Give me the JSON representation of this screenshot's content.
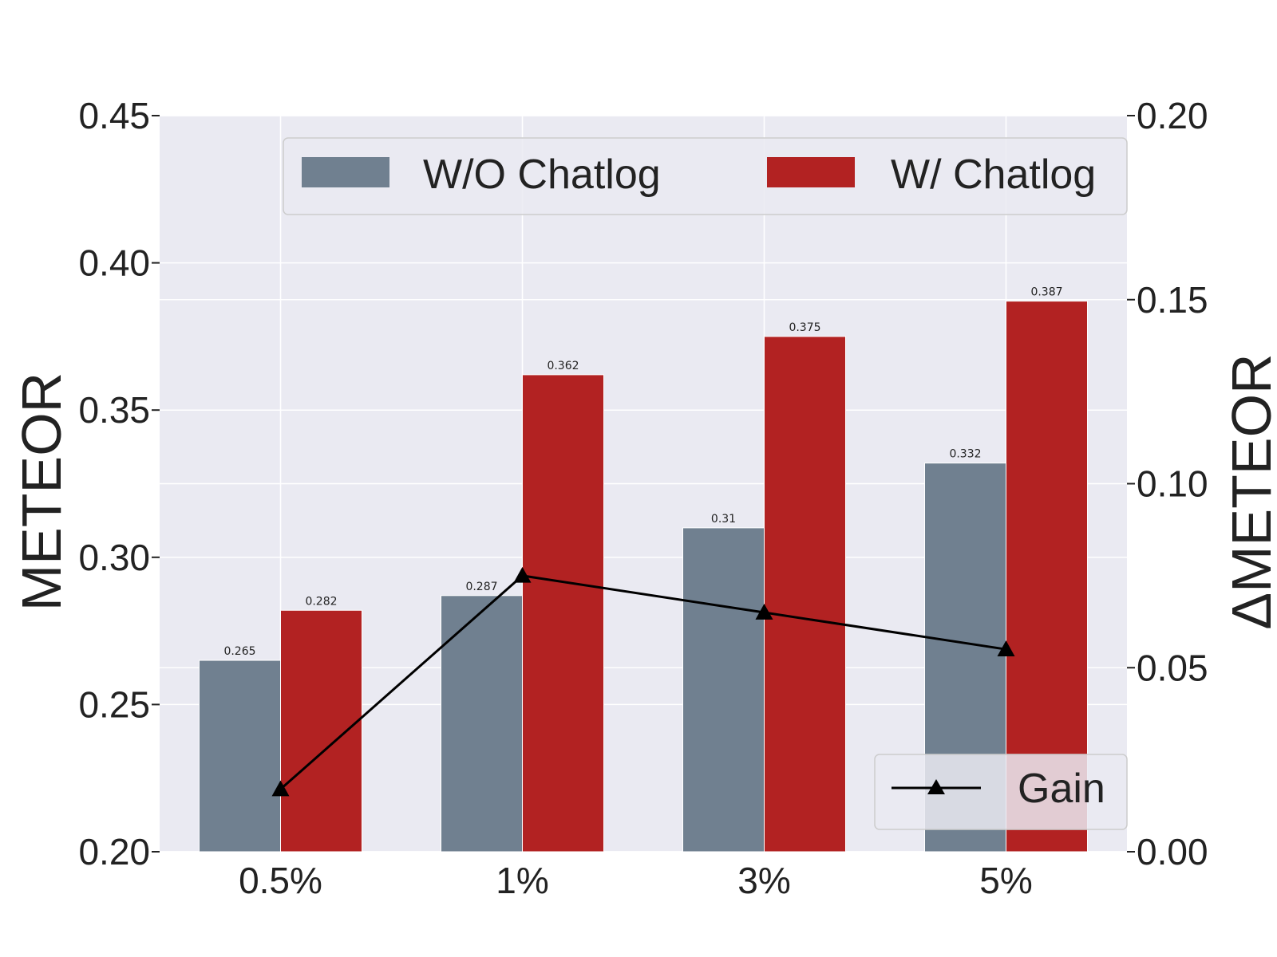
{
  "chart_data": {
    "type": "bar",
    "categories": [
      "0.5%",
      "1%",
      "3%",
      "5%"
    ],
    "series": [
      {
        "name": "W/O Chatlog",
        "values": [
          0.265,
          0.287,
          0.31,
          0.332
        ],
        "color": "#708090"
      },
      {
        "name": "W/ Chatlog",
        "values": [
          0.282,
          0.362,
          0.375,
          0.387
        ],
        "color": "#b22222"
      }
    ],
    "bar_labels": [
      [
        "0.265",
        "0.287",
        "0.31",
        "0.332"
      ],
      [
        "0.282",
        "0.362",
        "0.375",
        "0.387"
      ]
    ],
    "line_series": {
      "name": "Gain",
      "values": [
        0.017,
        0.075,
        0.065,
        0.055
      ],
      "color": "#000000",
      "marker": "triangle",
      "axis": "right"
    },
    "ylabel": "METEOR",
    "ylabel_right": "ΔMETEOR",
    "ylim": [
      0.2,
      0.45
    ],
    "ylim_right": [
      0.0,
      0.2
    ],
    "yticks": [
      "0.20",
      "0.25",
      "0.30",
      "0.35",
      "0.40",
      "0.45"
    ],
    "yticks_right": [
      "0.00",
      "0.05",
      "0.10",
      "0.15",
      "0.20"
    ],
    "grid": true,
    "legend_bars": "top-right",
    "legend_line": "bottom-right",
    "background": "#eaeaf2"
  }
}
